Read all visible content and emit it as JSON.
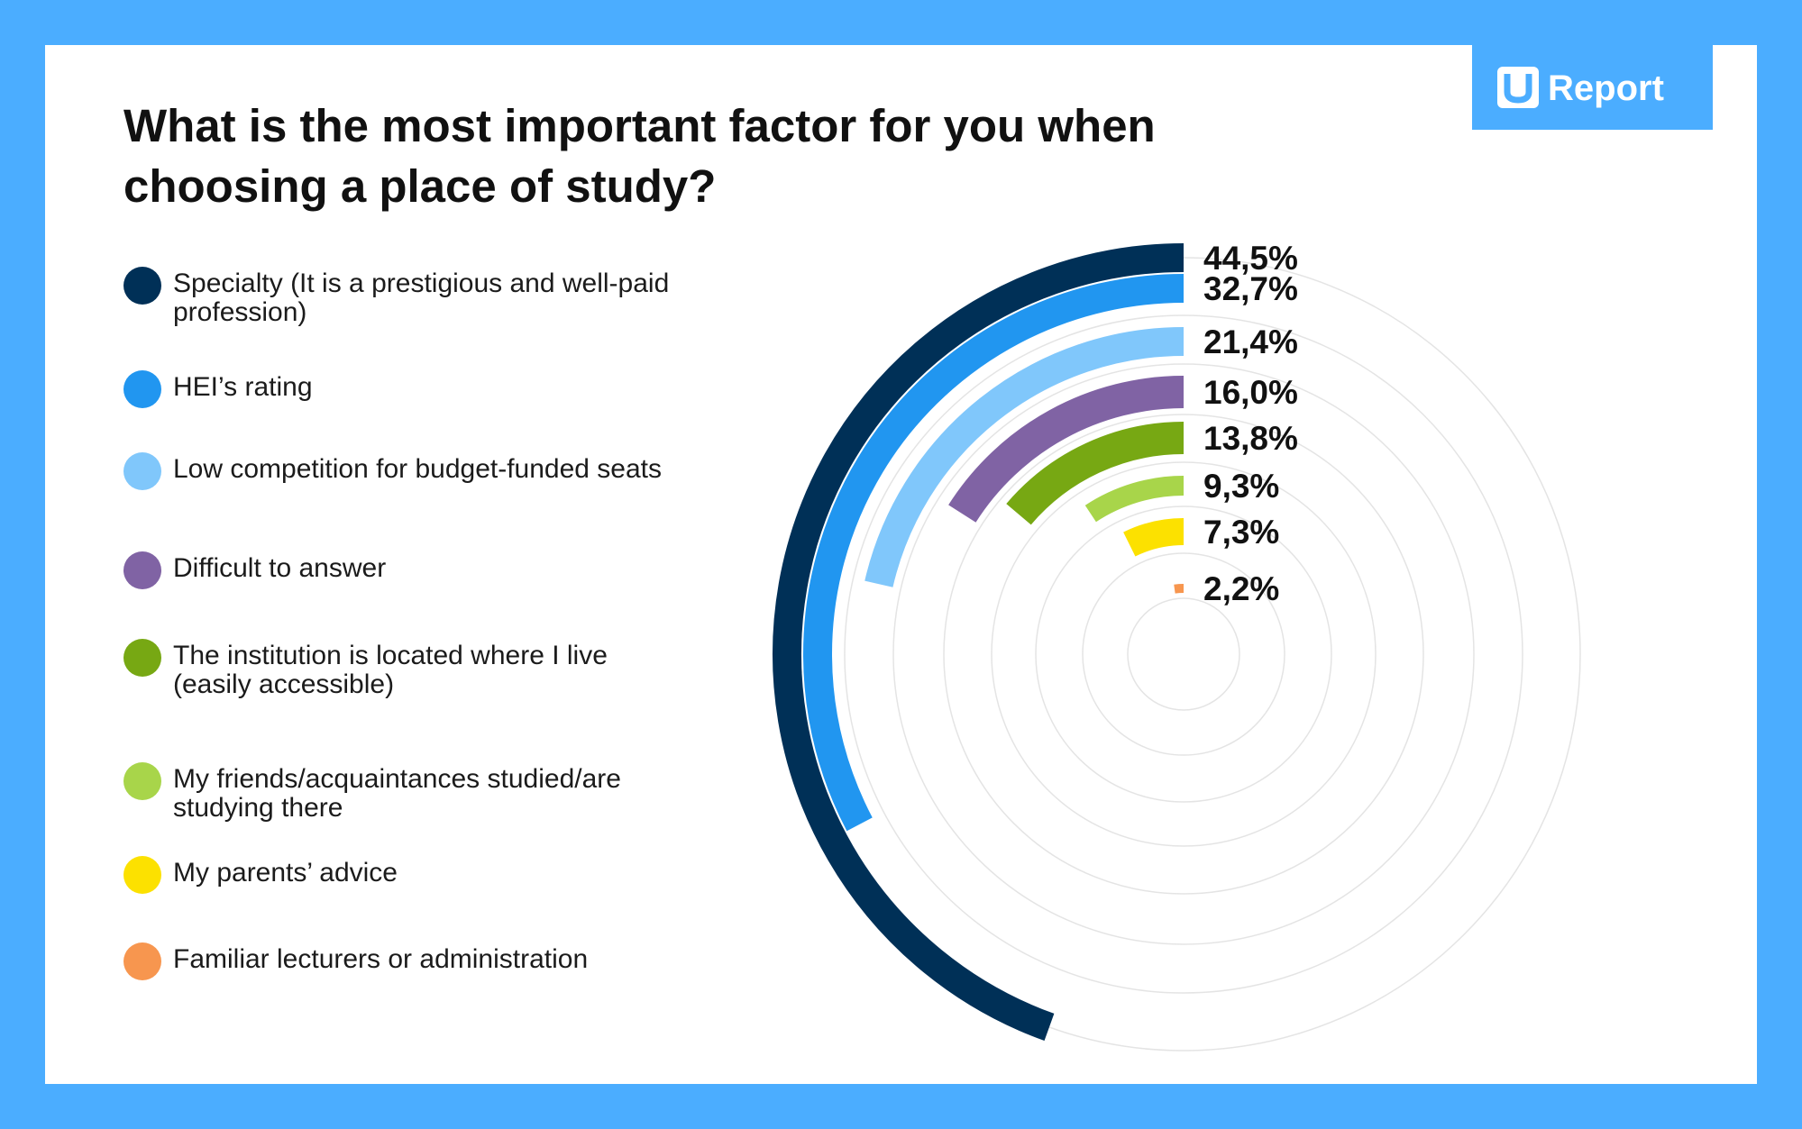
{
  "title": "What is the most important factor for you when choosing a place of study?",
  "logo": {
    "text": "Report"
  },
  "colors": {
    "frame": "#4badff",
    "grid": "#e4e4e4"
  },
  "chart_data": {
    "type": "radial-bar",
    "max_value": 100,
    "categories": [
      "Specialty (It is a prestigious and well-paid profession)",
      "HEI’s rating",
      "Low competition for budget-funded seats",
      "Difficult to answer",
      "The institution is located where I live (easily accessible)",
      "My friends/acquaintances studied/are studying there",
      "My parents’ advice",
      "Familiar lecturers or administration"
    ],
    "values": [
      44.5,
      32.7,
      21.4,
      16.0,
      13.8,
      9.3,
      7.3,
      2.2
    ],
    "value_labels": [
      "44,5%",
      "32,7%",
      "21,4%",
      "16,0%",
      "13,8%",
      "9,3%",
      "7,3%",
      "2,2%"
    ],
    "series_colors": [
      "#003057",
      "#2196f0",
      "#80c7fb",
      "#8063a4",
      "#77a813",
      "#a8d54a",
      "#fce100",
      "#f7964f"
    ]
  }
}
